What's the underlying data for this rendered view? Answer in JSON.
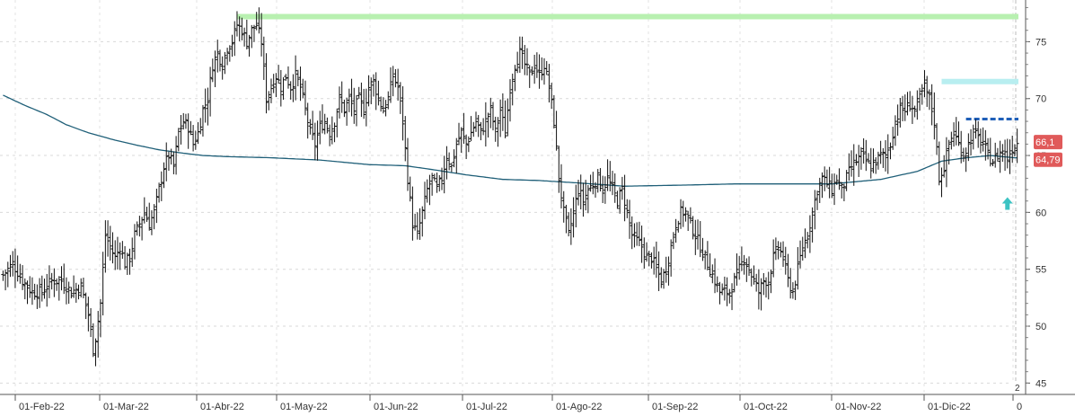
{
  "chart_data": {
    "type": "bar",
    "title": "",
    "xlabel": "",
    "ylabel": "",
    "ylim": [
      44,
      78
    ],
    "y_axis_position": "right",
    "grid": true,
    "y_ticks": [
      {
        "value": 45,
        "label": "45"
      },
      {
        "value": 50,
        "label": "50"
      },
      {
        "value": 55,
        "label": "55"
      },
      {
        "value": 60,
        "label": "60"
      },
      {
        "value": 65,
        "label": "65"
      },
      {
        "value": 70,
        "label": "70"
      },
      {
        "value": 75,
        "label": "75"
      }
    ],
    "x_ticks": [
      "01-Feb-22",
      "01-Mar-22",
      "01-Abr-22",
      "01-May-22",
      "01-Jun-22",
      "01-Jul-22",
      "01-Ago-22",
      "01-Sep-22",
      "01-Oct-22",
      "01-Nov-22",
      "01-Dic-22",
      "0"
    ],
    "price_tags": [
      {
        "label": "66,1",
        "value": 66.1,
        "color": "#e05a5a"
      },
      {
        "label": "64,79",
        "value": 64.79,
        "color": "#e05a5a"
      }
    ],
    "corner_label": "2",
    "reference_lines": [
      {
        "name": "resistance-high",
        "value": 77.2,
        "color": "#b8f0b0",
        "style": "solid-thick",
        "from_bar": 96,
        "to_bar": 999
      },
      {
        "name": "resistance-dec",
        "value": 71.5,
        "color": "#b8eef0",
        "style": "solid-thick",
        "from_bar": 385,
        "to_bar": 999
      },
      {
        "name": "support-dashed",
        "value": 68.2,
        "color": "#1f5fb8",
        "style": "dashed",
        "from_bar": 395,
        "to_bar": 999
      }
    ],
    "arrow_marker": {
      "value": 60.7,
      "bar": 412,
      "color": "#3cc3c3"
    },
    "moving_average": {
      "color": "#1f5f78",
      "points": [
        [
          0,
          70.3
        ],
        [
          9,
          69.4
        ],
        [
          18,
          68.6
        ],
        [
          26,
          67.7
        ],
        [
          35,
          67.0
        ],
        [
          45,
          66.4
        ],
        [
          55,
          65.9
        ],
        [
          64,
          65.5
        ],
        [
          74,
          65.2
        ],
        [
          82,
          65.0
        ],
        [
          92,
          64.9
        ],
        [
          110,
          64.8
        ],
        [
          130,
          64.6
        ],
        [
          150,
          64.2
        ],
        [
          165,
          64.1
        ],
        [
          175,
          63.8
        ],
        [
          190,
          63.3
        ],
        [
          205,
          62.9
        ],
        [
          220,
          62.8
        ],
        [
          235,
          62.6
        ],
        [
          255,
          62.3
        ],
        [
          280,
          62.4
        ],
        [
          300,
          62.5
        ],
        [
          320,
          62.5
        ],
        [
          340,
          62.5
        ],
        [
          360,
          62.9
        ],
        [
          375,
          63.6
        ],
        [
          385,
          64.5
        ],
        [
          395,
          64.8
        ],
        [
          405,
          65.0
        ],
        [
          415,
          64.8
        ]
      ]
    },
    "price_path": [
      [
        0,
        54.5
      ],
      [
        4,
        55.5
      ],
      [
        8,
        54
      ],
      [
        12,
        53
      ],
      [
        16,
        53
      ],
      [
        20,
        54
      ],
      [
        24,
        54
      ],
      [
        28,
        53
      ],
      [
        32,
        53.5
      ],
      [
        35,
        51
      ],
      [
        37,
        48
      ],
      [
        38,
        49
      ],
      [
        40,
        52
      ],
      [
        42,
        58
      ],
      [
        44,
        57
      ],
      [
        46,
        56
      ],
      [
        48,
        57
      ],
      [
        50,
        55.5
      ],
      [
        52,
        56
      ],
      [
        54,
        58
      ],
      [
        56,
        59
      ],
      [
        58,
        60
      ],
      [
        60,
        59
      ],
      [
        62,
        60
      ],
      [
        64,
        62
      ],
      [
        66,
        64
      ],
      [
        68,
        65
      ],
      [
        70,
        64
      ],
      [
        72,
        67
      ],
      [
        74,
        68
      ],
      [
        76,
        67.5
      ],
      [
        78,
        66
      ],
      [
        80,
        67
      ],
      [
        82,
        69
      ],
      [
        84,
        70
      ],
      [
        86,
        73
      ],
      [
        88,
        74
      ],
      [
        90,
        73
      ],
      [
        92,
        74.5
      ],
      [
        94,
        75
      ],
      [
        96,
        76.5
      ],
      [
        98,
        76
      ],
      [
        100,
        75
      ],
      [
        102,
        76
      ],
      [
        104,
        76.5
      ],
      [
        106,
        75
      ],
      [
        108,
        70
      ],
      [
        110,
        71
      ],
      [
        112,
        72
      ],
      [
        114,
        71
      ],
      [
        116,
        72
      ],
      [
        118,
        71
      ],
      [
        120,
        72
      ],
      [
        122,
        71
      ],
      [
        124,
        69
      ],
      [
        126,
        67
      ],
      [
        128,
        66
      ],
      [
        130,
        67.5
      ],
      [
        132,
        68
      ],
      [
        134,
        67
      ],
      [
        136,
        68
      ],
      [
        138,
        70
      ],
      [
        140,
        69
      ],
      [
        142,
        70
      ],
      [
        144,
        69
      ],
      [
        146,
        70
      ],
      [
        148,
        69
      ],
      [
        150,
        71
      ],
      [
        152,
        71.5
      ],
      [
        154,
        70
      ],
      [
        156,
        69
      ],
      [
        158,
        70
      ],
      [
        160,
        72
      ],
      [
        162,
        71
      ],
      [
        164,
        68
      ],
      [
        166,
        63
      ],
      [
        168,
        59
      ],
      [
        170,
        58
      ],
      [
        172,
        60
      ],
      [
        174,
        62
      ],
      [
        176,
        63
      ],
      [
        178,
        62
      ],
      [
        180,
        63
      ],
      [
        182,
        65
      ],
      [
        184,
        64
      ],
      [
        186,
        66
      ],
      [
        188,
        67
      ],
      [
        190,
        66
      ],
      [
        192,
        67
      ],
      [
        194,
        68
      ],
      [
        196,
        67
      ],
      [
        198,
        68
      ],
      [
        200,
        69
      ],
      [
        202,
        67
      ],
      [
        204,
        69
      ],
      [
        206,
        67
      ],
      [
        208,
        71
      ],
      [
        210,
        73
      ],
      [
        212,
        74
      ],
      [
        214,
        73
      ],
      [
        216,
        72
      ],
      [
        218,
        73
      ],
      [
        220,
        72
      ],
      [
        222,
        73
      ],
      [
        224,
        71
      ],
      [
        226,
        68
      ],
      [
        228,
        63
      ],
      [
        230,
        60
      ],
      [
        232,
        58
      ],
      [
        234,
        60
      ],
      [
        236,
        62
      ],
      [
        238,
        61
      ],
      [
        240,
        62
      ],
      [
        242,
        62.5
      ],
      [
        244,
        63
      ],
      [
        246,
        62
      ],
      [
        248,
        63
      ],
      [
        250,
        62
      ],
      [
        252,
        61
      ],
      [
        254,
        62
      ],
      [
        256,
        60
      ],
      [
        258,
        58
      ],
      [
        260,
        57.5
      ],
      [
        262,
        57
      ],
      [
        264,
        56
      ],
      [
        266,
        56
      ],
      [
        268,
        55
      ],
      [
        270,
        54
      ],
      [
        272,
        55
      ],
      [
        274,
        57
      ],
      [
        276,
        59
      ],
      [
        278,
        60
      ],
      [
        280,
        60
      ],
      [
        282,
        59
      ],
      [
        284,
        58
      ],
      [
        286,
        57
      ],
      [
        288,
        56
      ],
      [
        290,
        55
      ],
      [
        292,
        54
      ],
      [
        294,
        53
      ],
      [
        296,
        53
      ],
      [
        298,
        53
      ],
      [
        300,
        54
      ],
      [
        302,
        55
      ],
      [
        304,
        56
      ],
      [
        306,
        55
      ],
      [
        308,
        54
      ],
      [
        310,
        53
      ],
      [
        312,
        54
      ],
      [
        314,
        54
      ],
      [
        316,
        56
      ],
      [
        318,
        57
      ],
      [
        320,
        56
      ],
      [
        322,
        54
      ],
      [
        324,
        53
      ],
      [
        326,
        55
      ],
      [
        328,
        57
      ],
      [
        330,
        58
      ],
      [
        332,
        60
      ],
      [
        334,
        62
      ],
      [
        336,
        63
      ],
      [
        338,
        62.5
      ],
      [
        340,
        62
      ],
      [
        342,
        63
      ],
      [
        344,
        62
      ],
      [
        346,
        63
      ],
      [
        348,
        64
      ],
      [
        350,
        64.5
      ],
      [
        352,
        65
      ],
      [
        354,
        64.5
      ],
      [
        356,
        64
      ],
      [
        358,
        64.5
      ],
      [
        360,
        65
      ],
      [
        362,
        65
      ],
      [
        364,
        66
      ],
      [
        366,
        68
      ],
      [
        368,
        69
      ],
      [
        370,
        69
      ],
      [
        372,
        69.5
      ],
      [
        374,
        69
      ],
      [
        376,
        70
      ],
      [
        378,
        71
      ],
      [
        380,
        70
      ],
      [
        382,
        68
      ],
      [
        384,
        63
      ],
      [
        386,
        64
      ],
      [
        388,
        66
      ],
      [
        390,
        67
      ],
      [
        392,
        66
      ],
      [
        394,
        65
      ],
      [
        396,
        66
      ],
      [
        398,
        67
      ],
      [
        400,
        66.5
      ],
      [
        402,
        66
      ],
      [
        404,
        65
      ],
      [
        406,
        64.5
      ],
      [
        408,
        65
      ],
      [
        410,
        65.5
      ],
      [
        412,
        64.8
      ],
      [
        414,
        65.7
      ],
      [
        416,
        66.1
      ]
    ]
  }
}
